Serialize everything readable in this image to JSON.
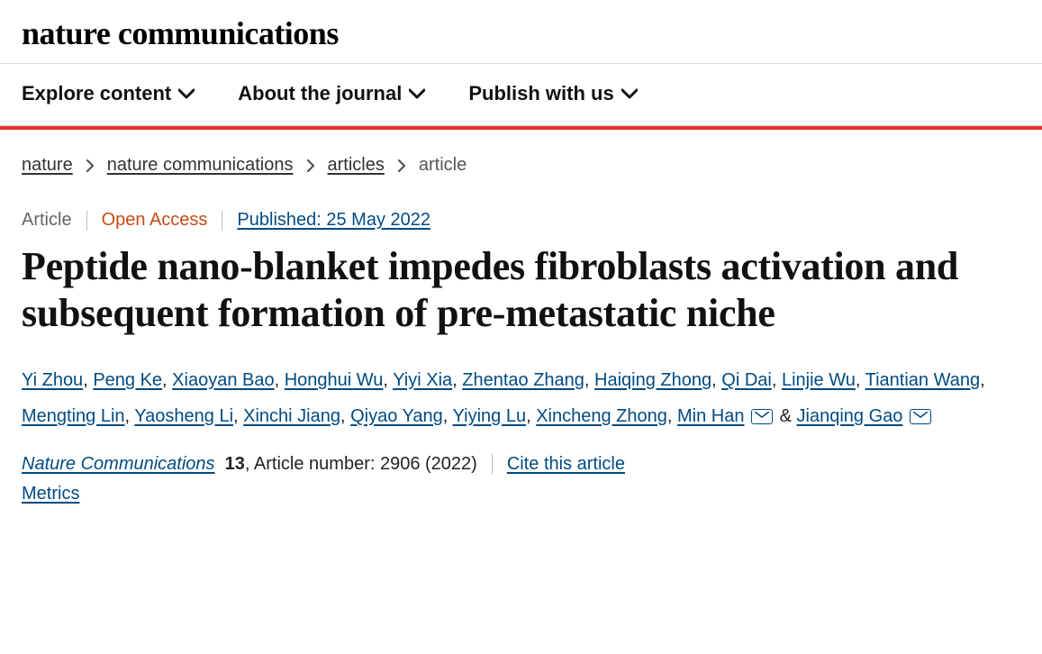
{
  "brand": {
    "logo_text": "nature communications"
  },
  "nav": {
    "items": [
      {
        "label": "Explore content"
      },
      {
        "label": "About the journal"
      },
      {
        "label": "Publish with us"
      }
    ]
  },
  "accent_color": "#e63329",
  "breadcrumb": {
    "items": [
      {
        "label": "nature",
        "link": true
      },
      {
        "label": "nature communications",
        "link": true
      },
      {
        "label": "articles",
        "link": true
      },
      {
        "label": "article",
        "link": false
      }
    ]
  },
  "meta": {
    "type": "Article",
    "access": "Open Access",
    "published_label": "Published: 25 May 2022"
  },
  "title": "Peptide nano-blanket impedes fibroblasts activation and subsequent formation of pre-metastatic niche",
  "authors": [
    {
      "name": "Yi Zhou"
    },
    {
      "name": "Peng Ke"
    },
    {
      "name": "Xiaoyan Bao"
    },
    {
      "name": "Honghui Wu"
    },
    {
      "name": "Yiyi Xia"
    },
    {
      "name": "Zhentao Zhang"
    },
    {
      "name": "Haiqing Zhong"
    },
    {
      "name": "Qi Dai"
    },
    {
      "name": "Linjie Wu"
    },
    {
      "name": "Tiantian Wang"
    },
    {
      "name": "Mengting Lin"
    },
    {
      "name": "Yaosheng Li"
    },
    {
      "name": "Xinchi Jiang"
    },
    {
      "name": "Qiyao Yang"
    },
    {
      "name": "Yiying Lu"
    },
    {
      "name": "Xincheng Zhong"
    },
    {
      "name": "Min Han",
      "corresponding": true
    },
    {
      "name": "Jianqing Gao",
      "corresponding": true
    }
  ],
  "amp": "&",
  "citation": {
    "journal": "Nature Communications",
    "volume": "13",
    "article_number_label": ", Article number: 2906 (2022)",
    "cite_label": "Cite this article"
  },
  "metrics_label": "Metrics",
  "colors": {
    "link": "#004b83",
    "access": "#c74a14",
    "text": "#222222",
    "muted": "#666666",
    "divider": "#d9d9d9"
  }
}
